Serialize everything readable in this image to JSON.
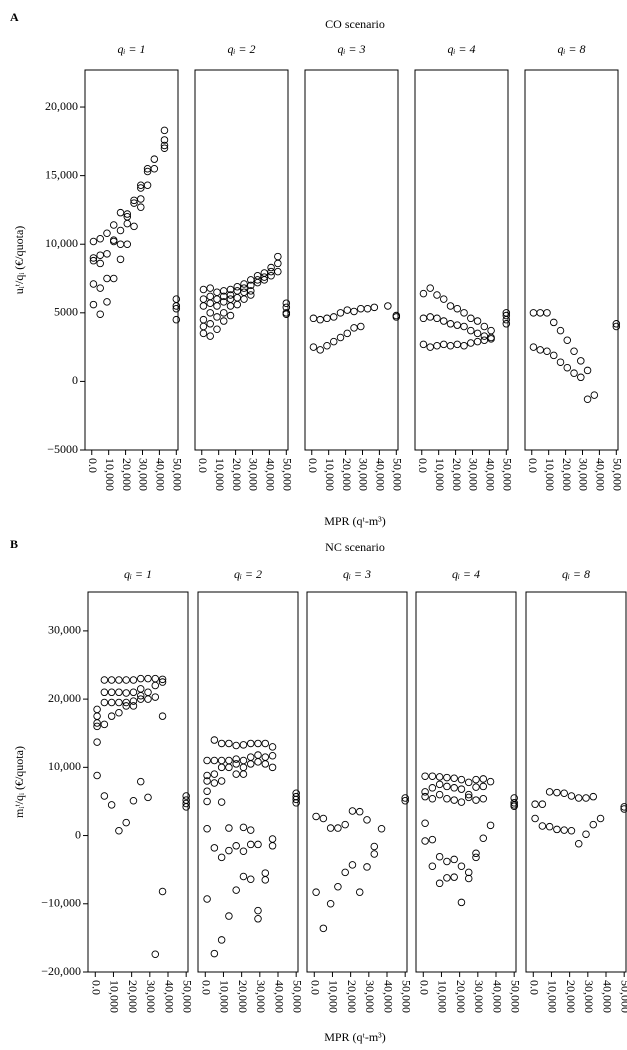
{
  "chart_data": [
    {
      "type": "scatter",
      "label": "A",
      "title": "CO scenario",
      "ylabel": "uᵢᵗ/qᵢ (€/quota)",
      "xlabel": "MPR (qᵗ-m³)",
      "ylim": [
        -5000,
        22700
      ],
      "yticks": [
        {
          "value": -5000,
          "label": "−5000"
        },
        0,
        5000,
        {
          "value": 10000,
          "label": "10,000"
        },
        {
          "value": 15000,
          "label": "15,000"
        },
        {
          "value": 20000,
          "label": "20,000"
        }
      ],
      "xlim": [
        -4000,
        51000
      ],
      "xticks": [
        {
          "value": 0,
          "label": "0.0"
        },
        {
          "value": 10000,
          "label": "10,000"
        },
        {
          "value": 20000,
          "label": "20,000"
        },
        {
          "value": 30000,
          "label": "30,000"
        },
        {
          "value": 40000,
          "label": "40,000"
        },
        {
          "value": 50000,
          "label": "50,000"
        }
      ],
      "panels": [
        {
          "title": "qᵢ = 1",
          "x": [
            1000,
            1000,
            1000,
            1000,
            1000,
            5000,
            5000,
            5000,
            5000,
            5000,
            9000,
            9000,
            9000,
            9000,
            13000,
            13000,
            13000,
            13000,
            17000,
            17000,
            17000,
            17000,
            21000,
            21000,
            21000,
            21000,
            25000,
            25000,
            25000,
            29000,
            29000,
            29000,
            29000,
            33000,
            33000,
            33000,
            37000,
            37000,
            43000,
            43000,
            43000,
            43000,
            50000,
            50000,
            50000,
            50000
          ],
          "values": [
            10200,
            9000,
            8800,
            7100,
            5600,
            10400,
            9200,
            8600,
            6800,
            4900,
            10800,
            9300,
            7500,
            5800,
            11400,
            10300,
            10200,
            7500,
            12300,
            11000,
            10000,
            8900,
            12200,
            12000,
            11500,
            10000,
            13200,
            13000,
            11300,
            14300,
            14100,
            13300,
            12700,
            15500,
            15300,
            14300,
            16200,
            15500,
            18300,
            17600,
            17200,
            17000,
            6000,
            5500,
            5300,
            4500
          ]
        },
        {
          "title": "qᵢ = 2",
          "x": [
            1000,
            1000,
            1000,
            1000,
            1000,
            1000,
            5000,
            5000,
            5000,
            5000,
            5000,
            5000,
            9000,
            9000,
            9000,
            9000,
            9000,
            13000,
            13000,
            13000,
            13000,
            13000,
            17000,
            17000,
            17000,
            17000,
            17000,
            21000,
            21000,
            21000,
            21000,
            25000,
            25000,
            25000,
            25000,
            29000,
            29000,
            29000,
            29000,
            33000,
            33000,
            33000,
            37000,
            37000,
            37000,
            41000,
            41000,
            41000,
            45000,
            45000,
            45000,
            50000,
            50000,
            50000,
            50000
          ],
          "values": [
            6700,
            6000,
            5500,
            4500,
            4000,
            3500,
            6800,
            6200,
            5700,
            5000,
            4200,
            3300,
            6500,
            6000,
            5500,
            4700,
            3800,
            6600,
            6200,
            5800,
            5000,
            4400,
            6700,
            6300,
            6000,
            5500,
            4800,
            6900,
            6600,
            6100,
            5600,
            7100,
            6800,
            6500,
            6000,
            7400,
            7000,
            6600,
            6300,
            7700,
            7400,
            7200,
            7900,
            7600,
            7400,
            8300,
            8000,
            7700,
            9100,
            8600,
            8000,
            5700,
            5400,
            5000,
            4900
          ]
        },
        {
          "title": "qᵢ = 3",
          "x": [
            1000,
            5000,
            9000,
            13000,
            17000,
            21000,
            25000,
            29000,
            33000,
            37000,
            1000,
            5000,
            9000,
            13000,
            17000,
            21000,
            25000,
            29000,
            45000,
            50000,
            50000
          ],
          "values": [
            4600,
            4500,
            4600,
            4700,
            5000,
            5200,
            5100,
            5300,
            5300,
            5400,
            2500,
            2300,
            2600,
            2900,
            3200,
            3500,
            3900,
            4000,
            5500,
            4800,
            4700
          ]
        },
        {
          "title": "qᵢ = 4",
          "x": [
            1000,
            5000,
            9000,
            13000,
            17000,
            21000,
            25000,
            29000,
            33000,
            37000,
            41000,
            1000,
            5000,
            9000,
            13000,
            17000,
            21000,
            25000,
            29000,
            33000,
            37000,
            41000,
            1000,
            5000,
            9000,
            13000,
            17000,
            21000,
            25000,
            29000,
            33000,
            37000,
            41000,
            50000,
            50000,
            50000,
            50000
          ],
          "values": [
            6400,
            6800,
            6300,
            6000,
            5500,
            5300,
            5000,
            4600,
            4400,
            4000,
            3700,
            4600,
            4700,
            4600,
            4400,
            4200,
            4100,
            4000,
            3700,
            3500,
            3300,
            3100,
            2700,
            2500,
            2600,
            2700,
            2600,
            2700,
            2600,
            2800,
            2900,
            3000,
            3200,
            5000,
            4800,
            4500,
            4200
          ]
        },
        {
          "title": "qᵢ = 8",
          "x": [
            1000,
            5000,
            9000,
            13000,
            17000,
            21000,
            25000,
            29000,
            33000,
            37000,
            1000,
            5000,
            9000,
            13000,
            17000,
            21000,
            25000,
            29000,
            33000,
            50000,
            50000
          ],
          "values": [
            5000,
            5000,
            5000,
            4300,
            3700,
            3000,
            2200,
            1500,
            800,
            -1000,
            2500,
            2300,
            2200,
            1900,
            1400,
            1000,
            600,
            300,
            -1300,
            4200,
            4000
          ]
        }
      ]
    },
    {
      "type": "scatter",
      "label": "B",
      "title": "NC scenario",
      "ylabel": "mᵢᵗ/qᵢ (€/quota)",
      "xlabel": "MPR (qᵗ-m³)",
      "ylim": [
        -20000,
        35700
      ],
      "yticks": [
        {
          "value": -20000,
          "label": "−20,000"
        },
        {
          "value": -10000,
          "label": "−10,000"
        },
        0,
        {
          "value": 10000,
          "label": "10,000"
        },
        {
          "value": 20000,
          "label": "20,000"
        },
        {
          "value": 30000,
          "label": "30,000"
        }
      ],
      "xlim": [
        -4000,
        51000
      ],
      "xticks": [
        {
          "value": 0,
          "label": "0.0"
        },
        {
          "value": 10000,
          "label": "10,000"
        },
        {
          "value": 20000,
          "label": "20,000"
        },
        {
          "value": 30000,
          "label": "30,000"
        },
        {
          "value": 40000,
          "label": "40,000"
        },
        {
          "value": 50000,
          "label": "50,000"
        }
      ],
      "panels": [
        {
          "title": "qᵢ = 1",
          "x": [
            1000,
            1000,
            1000,
            1000,
            1000,
            1000,
            5000,
            5000,
            5000,
            5000,
            5000,
            9000,
            9000,
            9000,
            9000,
            9000,
            13000,
            13000,
            13000,
            13000,
            13000,
            17000,
            17000,
            17000,
            17000,
            17000,
            21000,
            21000,
            21000,
            21000,
            21000,
            25000,
            25000,
            25000,
            25000,
            25000,
            29000,
            29000,
            29000,
            29000,
            33000,
            33000,
            33000,
            33000,
            37000,
            37000,
            37000,
            37000,
            50000,
            50000,
            50000,
            50000
          ],
          "values": [
            18500,
            17500,
            16500,
            16000,
            13700,
            8800,
            22800,
            21000,
            19500,
            16300,
            5800,
            22800,
            21000,
            19500,
            17500,
            4500,
            22800,
            21000,
            19500,
            18000,
            700,
            22800,
            20900,
            19500,
            19000,
            1900,
            22800,
            21000,
            19700,
            19000,
            5100,
            23000,
            21500,
            20500,
            20000,
            7900,
            23000,
            21000,
            20000,
            5600,
            23000,
            22000,
            20300,
            -17400,
            22900,
            22500,
            17500,
            -8200,
            5800,
            5200,
            4700,
            4200
          ]
        },
        {
          "title": "qᵢ = 2",
          "x": [
            1000,
            1000,
            1000,
            1000,
            1000,
            1000,
            1000,
            5000,
            5000,
            5000,
            5000,
            5000,
            5000,
            9000,
            9000,
            9000,
            9000,
            9000,
            9000,
            9000,
            13000,
            13000,
            13000,
            13000,
            13000,
            13000,
            17000,
            17000,
            17000,
            17000,
            17000,
            17000,
            21000,
            21000,
            21000,
            21000,
            21000,
            21000,
            21000,
            25000,
            25000,
            25000,
            25000,
            25000,
            25000,
            29000,
            29000,
            29000,
            29000,
            29000,
            29000,
            33000,
            33000,
            33000,
            33000,
            33000,
            37000,
            37000,
            37000,
            37000,
            37000,
            50000,
            50000,
            50000,
            50000
          ],
          "values": [
            11000,
            8800,
            8000,
            6500,
            5000,
            1000,
            -9300,
            14000,
            11000,
            9000,
            7700,
            -1800,
            -17300,
            13500,
            11000,
            10000,
            8000,
            4900,
            -3200,
            -15300,
            13500,
            11000,
            10000,
            1100,
            -2200,
            -11800,
            13200,
            11200,
            10500,
            9000,
            -1500,
            -8000,
            13300,
            11000,
            10000,
            9000,
            1200,
            -2300,
            -6000,
            13500,
            11500,
            10500,
            800,
            -1300,
            -6400,
            13500,
            11800,
            10800,
            -1300,
            -11000,
            -12200,
            13500,
            11500,
            10500,
            -5500,
            -6500,
            13000,
            11700,
            10000,
            -500,
            -1500,
            6200,
            5700,
            5300,
            4800
          ]
        },
        {
          "title": "qᵢ = 3",
          "x": [
            1000,
            5000,
            9000,
            13000,
            17000,
            21000,
            25000,
            29000,
            33000,
            1000,
            5000,
            9000,
            13000,
            17000,
            21000,
            25000,
            29000,
            33000,
            37000,
            50000,
            50000
          ],
          "values": [
            2800,
            2500,
            1100,
            1100,
            1600,
            3600,
            3500,
            2300,
            -2700,
            -8300,
            -13600,
            -10000,
            -7500,
            -5400,
            -4300,
            -8300,
            -4600,
            -1600,
            1000,
            5500,
            5100
          ]
        },
        {
          "title": "qᵢ = 4",
          "x": [
            1000,
            5000,
            9000,
            13000,
            17000,
            21000,
            25000,
            29000,
            33000,
            37000,
            1000,
            5000,
            9000,
            13000,
            17000,
            21000,
            25000,
            29000,
            33000,
            1000,
            5000,
            9000,
            13000,
            17000,
            21000,
            25000,
            29000,
            33000,
            1000,
            5000,
            9000,
            13000,
            17000,
            21000,
            25000,
            29000,
            33000,
            1000,
            5000,
            9000,
            13000,
            17000,
            21000,
            25000,
            29000,
            37000,
            50000,
            50000,
            50000,
            50000
          ],
          "values": [
            8700,
            8700,
            8600,
            8500,
            8400,
            8200,
            7800,
            8200,
            8300,
            7900,
            6400,
            7000,
            7500,
            7200,
            7000,
            6800,
            6000,
            7100,
            7200,
            5700,
            5400,
            6000,
            5400,
            5200,
            4900,
            5600,
            5200,
            5400,
            1800,
            -600,
            -3100,
            -3800,
            -3500,
            -4500,
            -5400,
            -3200,
            -400,
            -800,
            -4500,
            -7000,
            -6200,
            -6100,
            -9800,
            -6300,
            -2600,
            1500,
            5500,
            4800,
            4500,
            4300
          ]
        },
        {
          "title": "qᵢ = 8",
          "x": [
            1000,
            5000,
            9000,
            13000,
            17000,
            21000,
            25000,
            29000,
            33000,
            1000,
            5000,
            9000,
            13000,
            17000,
            21000,
            25000,
            29000,
            33000,
            37000,
            50000,
            50000
          ],
          "values": [
            4600,
            4600,
            6400,
            6300,
            6200,
            5800,
            5500,
            5500,
            5700,
            2500,
            1400,
            1300,
            900,
            800,
            700,
            -1200,
            200,
            1600,
            2500,
            4200,
            3900
          ]
        }
      ]
    }
  ]
}
